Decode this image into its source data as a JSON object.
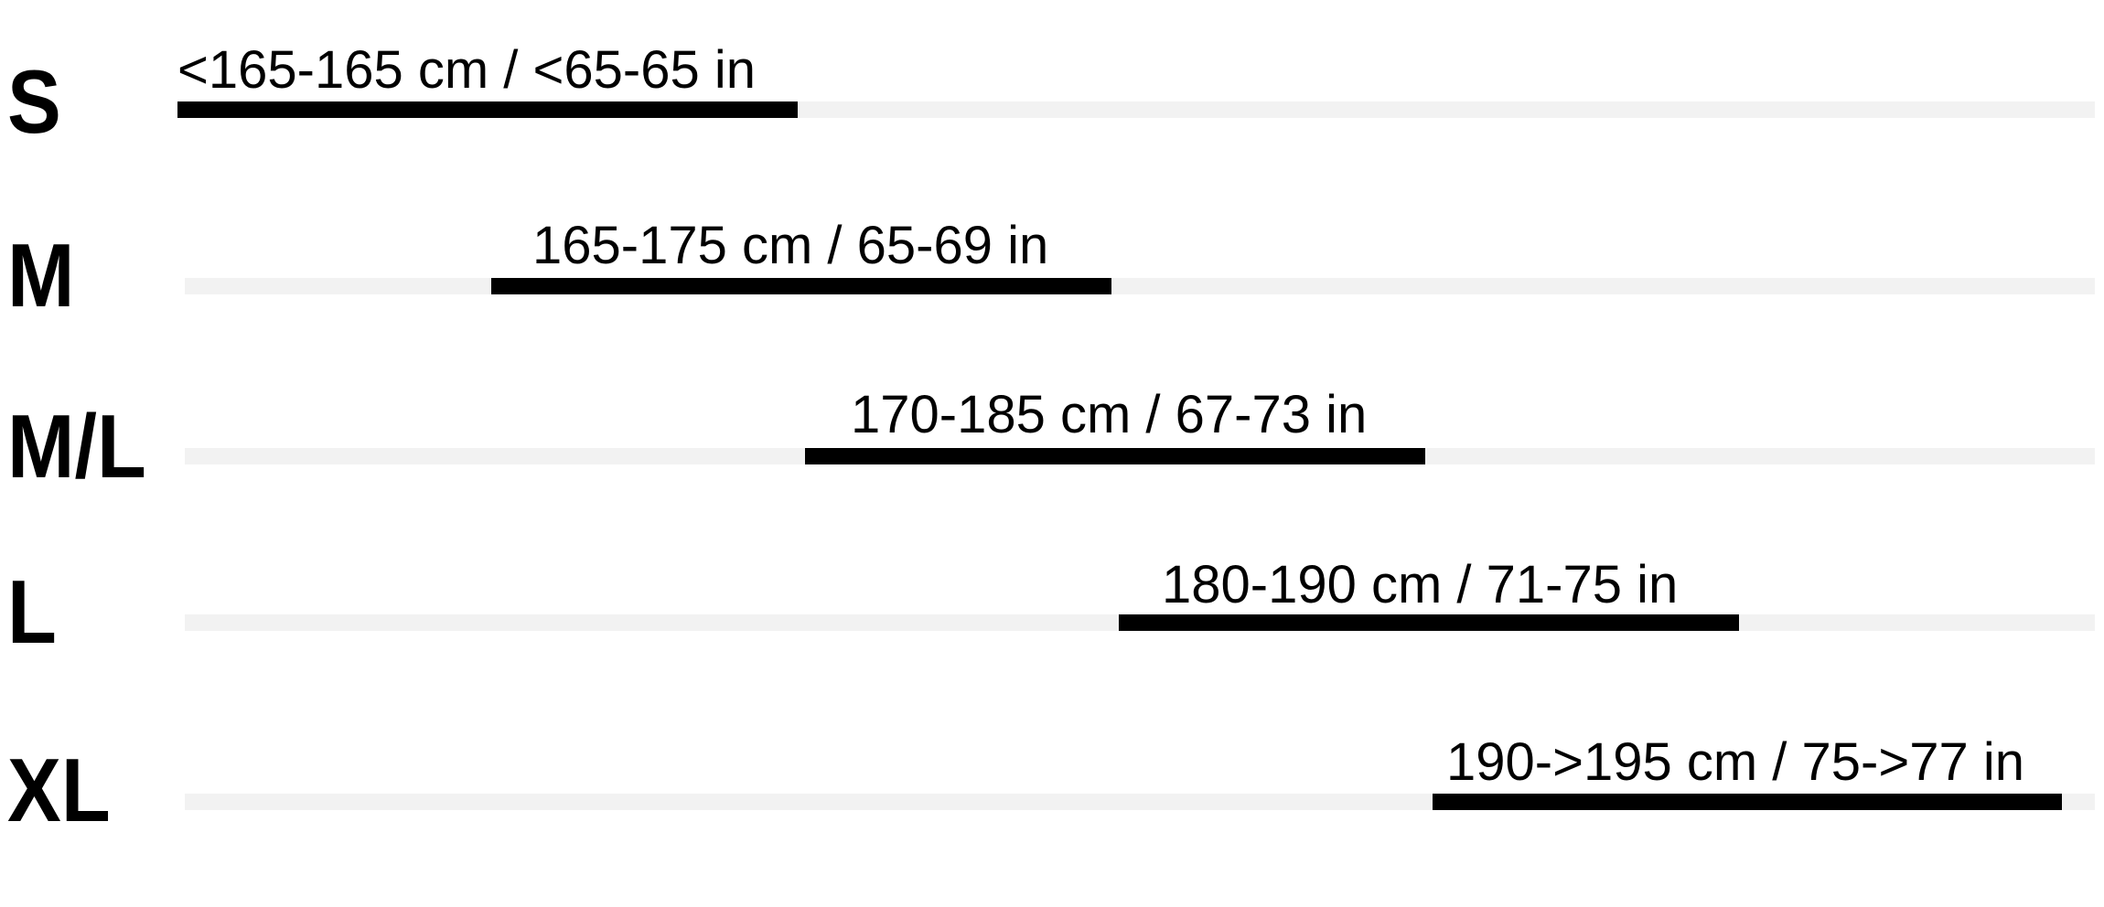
{
  "chart_data": {
    "type": "bar",
    "orientation": "horizontal-range",
    "categories": [
      "S",
      "M",
      "M/L",
      "L",
      "XL"
    ],
    "range_labels": [
      "<165-165 cm / <65-65 in",
      "165-175 cm / 65-69 in",
      "170-185 cm / 67-73 in",
      "180-190 cm / 71-75 in",
      "190->195 cm / 75->77 in"
    ],
    "ranges_cm": [
      [
        null,
        165
      ],
      [
        165,
        175
      ],
      [
        170,
        185
      ],
      [
        180,
        190
      ],
      [
        190,
        195
      ]
    ],
    "ranges_in": [
      [
        null,
        65
      ],
      [
        65,
        69
      ],
      [
        67,
        73
      ],
      [
        71,
        75
      ],
      [
        75,
        77
      ]
    ],
    "grid": false,
    "legend": "none",
    "colors": {
      "bar": "#000000",
      "track": "#f2f2f2",
      "text": "#000000"
    }
  }
}
